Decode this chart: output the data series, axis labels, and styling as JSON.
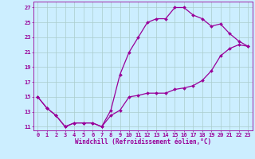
{
  "xlabel": "Windchill (Refroidissement éolien,°C)",
  "bg_color": "#cceeff",
  "line_color": "#990099",
  "xlim": [
    -0.5,
    23.5
  ],
  "ylim": [
    10.5,
    27.8
  ],
  "yticks": [
    11,
    13,
    15,
    17,
    19,
    21,
    23,
    25,
    27
  ],
  "xticks": [
    0,
    1,
    2,
    3,
    4,
    5,
    6,
    7,
    8,
    9,
    10,
    11,
    12,
    13,
    14,
    15,
    16,
    17,
    18,
    19,
    20,
    21,
    22,
    23
  ],
  "line1_x": [
    0,
    1,
    2,
    3,
    4,
    5,
    6,
    7,
    8,
    9,
    10,
    11,
    12,
    13,
    14,
    15,
    16,
    17,
    18,
    19,
    20,
    21,
    22,
    23
  ],
  "line1_y": [
    15.0,
    13.5,
    12.5,
    11.0,
    11.5,
    11.5,
    11.5,
    11.0,
    12.5,
    13.2,
    15.0,
    15.2,
    15.5,
    15.5,
    15.5,
    16.0,
    16.2,
    16.5,
    17.2,
    18.5,
    20.5,
    21.5,
    22.0,
    21.8
  ],
  "line2_x": [
    0,
    1,
    2,
    3,
    4,
    5,
    6,
    7,
    8,
    9,
    10,
    11,
    12,
    13,
    14,
    15,
    16,
    17,
    18,
    19,
    20,
    21,
    22,
    23
  ],
  "line2_y": [
    15.0,
    13.5,
    12.5,
    11.0,
    11.5,
    11.5,
    11.5,
    11.0,
    13.2,
    18.0,
    21.0,
    23.0,
    25.0,
    25.5,
    25.5,
    27.0,
    27.0,
    26.0,
    25.5,
    24.5,
    24.8,
    23.5,
    22.5,
    21.8
  ],
  "grid_color": "#aacccc",
  "marker": "D",
  "markersize": 2.0,
  "linewidth": 0.9,
  "label_fontsize": 5.5,
  "tick_fontsize": 5.0
}
